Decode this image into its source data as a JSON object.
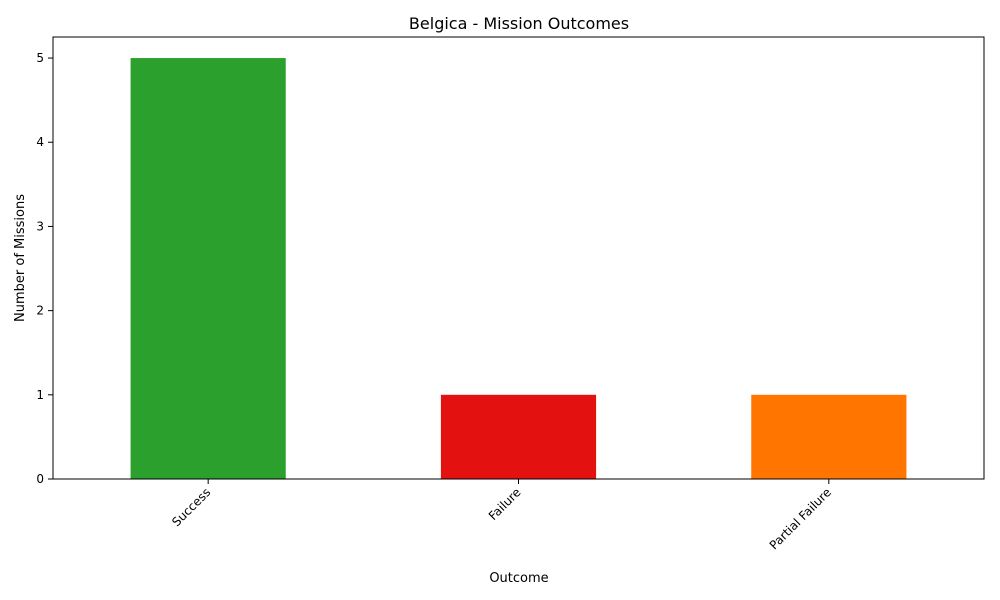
{
  "chart_data": {
    "type": "bar",
    "title": "Belgica - Mission Outcomes",
    "xlabel": "Outcome",
    "ylabel": "Number of Missions",
    "categories": [
      "Success",
      "Failure",
      "Partial Failure"
    ],
    "values": [
      5,
      1,
      1
    ],
    "colors": [
      "#2ca02c",
      "#e41111",
      "#ff7500"
    ],
    "ylim": [
      0,
      5.25
    ],
    "yticks": [
      0,
      1,
      2,
      3,
      4,
      5
    ],
    "grid": false,
    "legend": "none"
  }
}
